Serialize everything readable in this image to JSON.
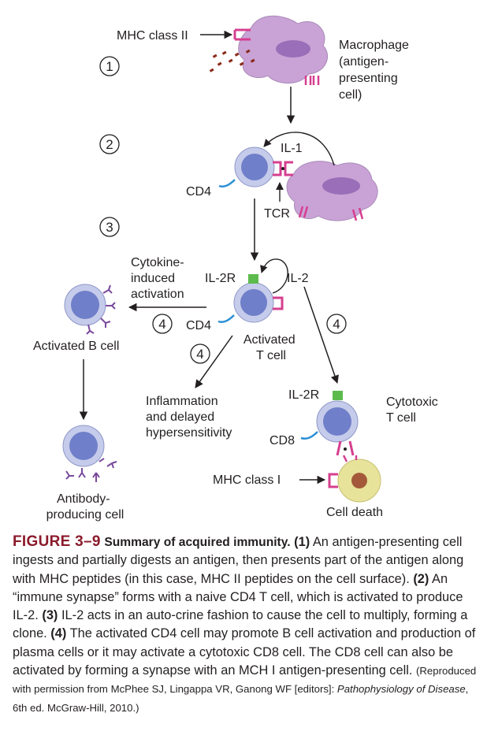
{
  "diagram": {
    "steps": [
      "1",
      "2",
      "3",
      "4"
    ],
    "labels": {
      "mhc_class_ii": "MHC class II",
      "macrophage": [
        "Macrophage",
        "(antigen-",
        "presenting",
        "cell)"
      ],
      "il1": "IL-1",
      "cd4": "CD4",
      "tcr": "TCR",
      "cytokine_activation": [
        "Cytokine-",
        "induced",
        "activation"
      ],
      "il2r": "IL-2R",
      "il2": "IL-2",
      "activated_t_cell": [
        "Activated",
        "T cell"
      ],
      "activated_b_cell": "Activated B cell",
      "inflammation": [
        "Inflammation",
        "and delayed",
        "hypersensitivity"
      ],
      "cytotoxic_t_cell": [
        "Cytotoxic",
        "T cell"
      ],
      "cd8": "CD8",
      "mhc_class_i": "MHC class I",
      "antibody_producing": [
        "Antibody-",
        "producing cell"
      ],
      "cell_death": "Cell death"
    },
    "colors": {
      "macrophage": "#c9a3d6",
      "nucleus": "#9a6eb8",
      "lymphocyte_outer": "#c5cbea",
      "lymphocyte_inner": "#6f7fc9",
      "receptor_pink": "#d63f8f",
      "receptor_blue": "#2b8fd4",
      "il2r_green": "#5dbb4e",
      "antibody_purple": "#7a4a9c",
      "target_outer": "#e8e39a",
      "target_inner": "#a45a3a",
      "antigen_dots": "#8b2a1a"
    }
  },
  "caption": {
    "figure_label": "FIGURE 3–9",
    "title": "Summary of acquired immunity.",
    "segments": [
      {
        "style": "b",
        "text": " (1)"
      },
      {
        "style": "n",
        "text": " An antigen-presenting cell ingests and partially digests an antigen, then presents part of the antigen along with MHC peptides (in this case, MHC II peptides on the cell surface). "
      },
      {
        "style": "b",
        "text": "(2)"
      },
      {
        "style": "n",
        "text": " An “immune synapse” forms with a naive CD4 T cell, which is activated to produce IL-2. "
      },
      {
        "style": "b",
        "text": "(3)"
      },
      {
        "style": "n",
        "text": " IL-2 acts in an auto-crine fashion to cause the cell to multiply, forming a clone. "
      },
      {
        "style": "b",
        "text": "(4)"
      },
      {
        "style": "n",
        "text": " The activated CD4 cell may promote B cell activation and production of plasma cells or it may activate a cytotoxic CD8 cell. The CD8 cell can also be activated by forming a synapse with an MCH I antigen-presenting cell. "
      },
      {
        "style": "src",
        "text": "(Reproduced with permission from McPhee SJ, Lingappa VR, Ganong WF [editors]: "
      },
      {
        "style": "src it",
        "text": "Pathophysiology of Disease"
      },
      {
        "style": "src",
        "text": ", 6th ed. McGraw-Hill, 2010.)"
      }
    ]
  }
}
